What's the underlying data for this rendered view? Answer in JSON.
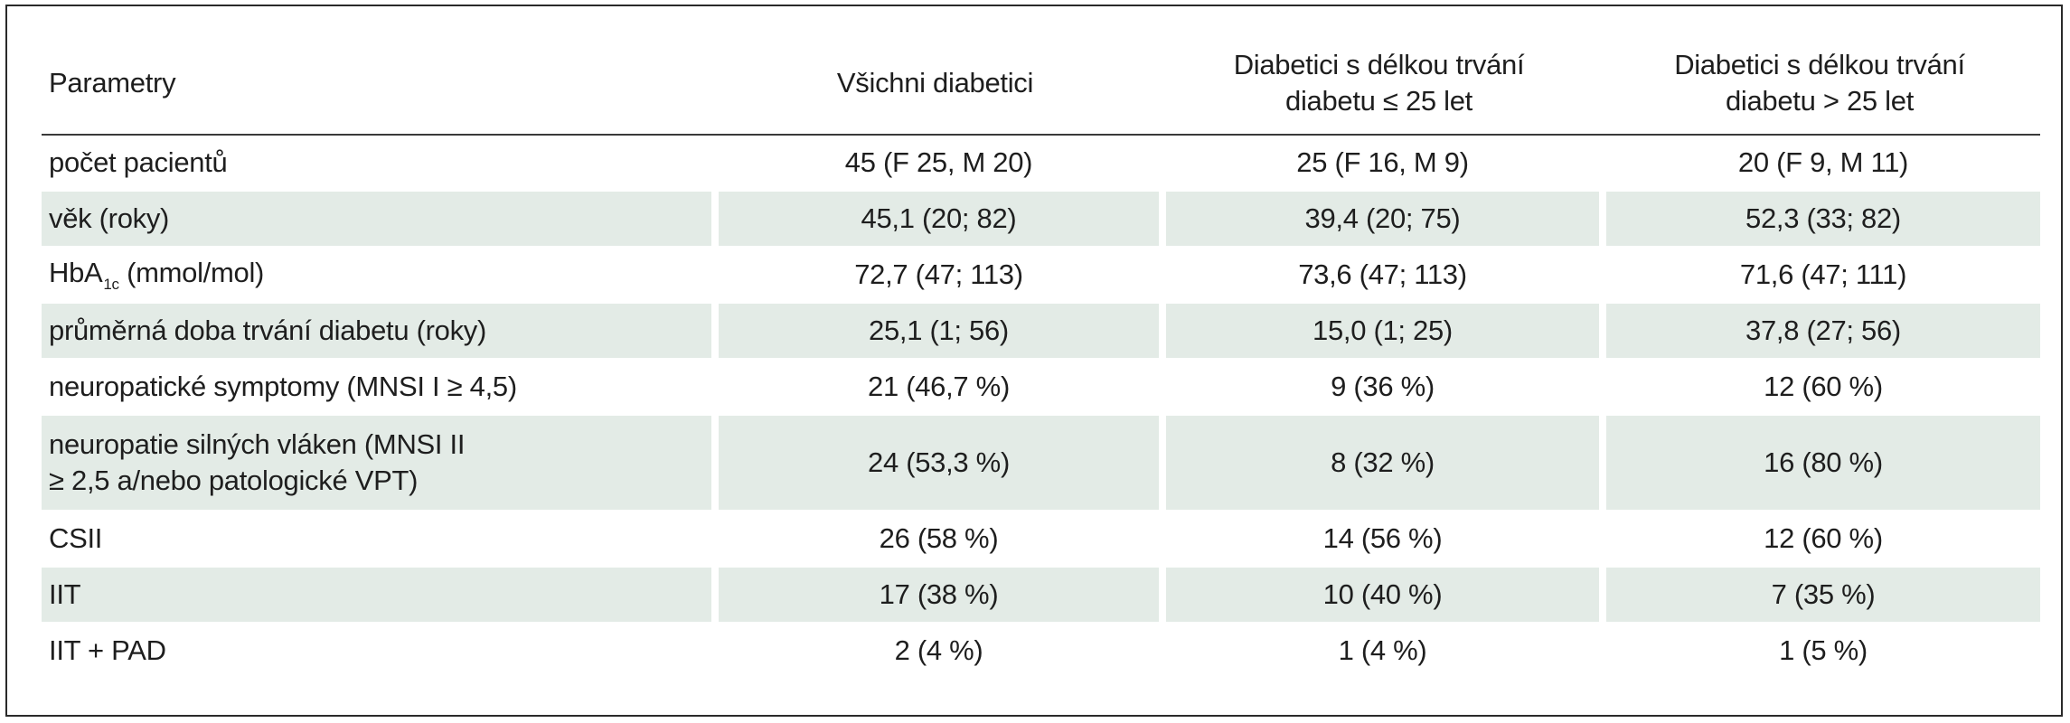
{
  "table": {
    "headers": [
      "Parametry",
      "Všichni diabetici",
      "Diabetici s délkou trvání diabetu ≤ 25 let",
      "Diabetici s délkou trvání diabetu > 25 let"
    ],
    "headers_split": {
      "col2_line1": "Diabetici s délkou trvání",
      "col2_line2": "diabetu ≤ 25 let",
      "col3_line1": "Diabetici s délkou trvání",
      "col3_line2": "diabetu > 25 let"
    },
    "rows": [
      {
        "param": "počet pacientů",
        "all": "45 (F 25, M 20)",
        "le25": "25 (F 16, M 9)",
        "gt25": "20 (F 9, M 11)"
      },
      {
        "param": "věk (roky)",
        "all": "45,1 (20; 82)",
        "le25": "39,4 (20; 75)",
        "gt25": "52,3 (33; 82)"
      },
      {
        "param_main": "HbA",
        "param_sub": "1c",
        "param_rest": " (mmol/mol)",
        "all": "72,7 (47; 113)",
        "le25": "73,6 (47; 113)",
        "gt25": "71,6 (47; 111)"
      },
      {
        "param": "průměrná doba trvání diabetu (roky)",
        "all": "25,1 (1; 56)",
        "le25": "15,0 (1; 25)",
        "gt25": "37,8 (27; 56)"
      },
      {
        "param": "neuropatické symptomy (MNSI I ≥ 4,5)",
        "all": "21 (46,7 %)",
        "le25": "9 (36 %)",
        "gt25": "12 (60 %)"
      },
      {
        "param_line1": "neuropatie silných vláken (MNSI II",
        "param_line2": "≥ 2,5 a/nebo patologické VPT)",
        "all": "24 (53,3 %)",
        "le25": "8 (32 %)",
        "gt25": "16 (80 %)"
      },
      {
        "param": "CSII",
        "all": "26 (58 %)",
        "le25": "14 (56 %)",
        "gt25": "12 (60 %)"
      },
      {
        "param": "IIT",
        "all": "17 (38 %)",
        "le25": "10 (40 %)",
        "gt25": "7 (35 %)"
      },
      {
        "param": "IIT + PAD",
        "all": "2 (4 %)",
        "le25": "1 (4 %)",
        "gt25": "1 (5 %)"
      }
    ]
  },
  "colors": {
    "row_shade": "#e3ebe6",
    "border": "#2a2a2a",
    "text": "#1e1e1e"
  }
}
